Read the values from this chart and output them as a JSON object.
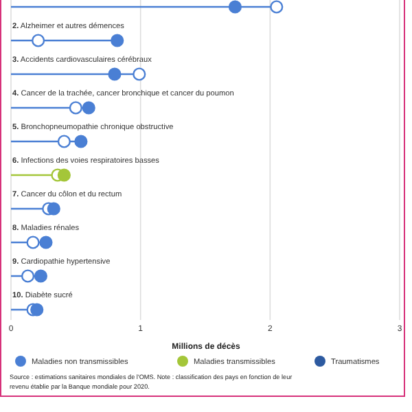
{
  "chart_data": {
    "type": "scatter",
    "orientation": "horizontal",
    "categories": [
      null,
      "2. Alzheimer et autres démences",
      "3. Accidents cardiovasculaires cérébraux",
      "4. Cancer de la trachée, cancer bronchique et cancer du poumon",
      "5. Bronchopneumopathie chronique obstructive",
      "6. Infections des voies respiratoires basses",
      "7. Cancer du côlon et du rectum",
      "8. Maladies rénales",
      "9. Cardiopathie hypertensive",
      "10. Diabète sucré"
    ],
    "series": [
      {
        "name": "Maladies non transmissibles",
        "color": "#4a7fd4",
        "values": [
          1.73,
          0.82,
          0.8,
          0.6,
          0.54,
          null,
          0.33,
          0.27,
          0.23,
          0.2
        ]
      },
      {
        "name": "Maladies transmissibles",
        "color": "#a4c639",
        "values": [
          null,
          null,
          null,
          null,
          null,
          0.41,
          null,
          null,
          null,
          null
        ]
      },
      {
        "name": "Traumatismes",
        "color": "#2d5aa0",
        "values": [
          null,
          null,
          null,
          null,
          null,
          null,
          null,
          null,
          null,
          null
        ]
      },
      {
        "type": "lollipop",
        "colors": [
          "#4a7fd4",
          "#4a7fd4",
          "#4a7fd4",
          "#4a7fd4",
          "#4a7fd4",
          "#a4c639",
          "#4a7fd4",
          "#4a7fd4",
          "#4a7fd4",
          "#4a7fd4"
        ],
        "values": [
          2.05,
          0.21,
          0.99,
          0.5,
          0.41,
          0.36,
          0.29,
          0.17,
          0.13,
          0.17
        ]
      }
    ],
    "xlim": [
      0,
      3
    ],
    "xticks": [
      0,
      1,
      2,
      3
    ],
    "grid": "x",
    "marker": "circle",
    "legend": "bottom",
    "xlabel": "Millions de décès",
    "annotations": [
      "Source : estimations sanitaires mondiales de l'OMS. Note : classification des pays en fonction de leur revenu établie par la Banque mondiale pour 2020."
    ]
  }
}
